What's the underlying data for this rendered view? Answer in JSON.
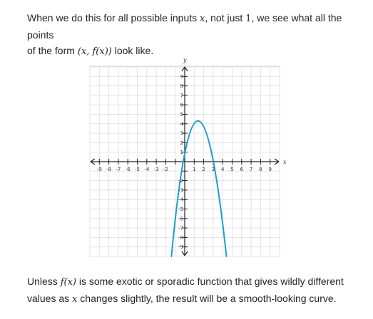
{
  "text": {
    "para1": {
      "prefix": "When we do this for all possible inputs ",
      "var_x": "x",
      "mid": ", not just ",
      "one": "1",
      "line1_end": ", we see what all the points",
      "line2_start": "of the form ",
      "pair": "(x, f(x))",
      "suffix": " look like."
    },
    "para2": {
      "prefix": "Unless ",
      "fx": "f(x)",
      "mid": " is some exotic or sporadic function that gives wildly different",
      "line2_start": "values as ",
      "var_x": "x",
      "suffix": " changes slightly, the result will be a smooth-looking curve."
    }
  },
  "chart_data": {
    "type": "line",
    "title": "",
    "xlabel": "x",
    "ylabel": "y",
    "xlim": [
      -10,
      10
    ],
    "ylim": [
      -10,
      10
    ],
    "grid": true,
    "x_ticks": [
      -9,
      -8,
      -7,
      -6,
      -5,
      -4,
      -3,
      -2,
      1,
      2,
      3,
      4,
      5,
      6,
      7,
      8,
      9
    ],
    "y_ticks": [
      9,
      8,
      7,
      6,
      5,
      4,
      3,
      2,
      1,
      -2,
      -3,
      -4,
      -5,
      -6,
      -7,
      -8,
      -9
    ],
    "curve_color": "#1a9fd1",
    "series": [
      {
        "x": [
          -1.4,
          -1.0,
          -0.5,
          0.0,
          0.5,
          1.0,
          1.3,
          1.5,
          2.0,
          2.5,
          3.0,
          3.5,
          4.0
        ],
        "y": [
          -10.0,
          -7.0,
          -3.6,
          -0.6,
          1.9,
          3.6,
          4.2,
          4.2,
          3.9,
          2.7,
          0.6,
          -2.4,
          -6.4
        ]
      }
    ],
    "curve_extent": {
      "x_left_at_bottom": -1.4,
      "x_right_at_bottom": 4.4,
      "vertex": [
        1.4,
        4.3
      ]
    }
  }
}
